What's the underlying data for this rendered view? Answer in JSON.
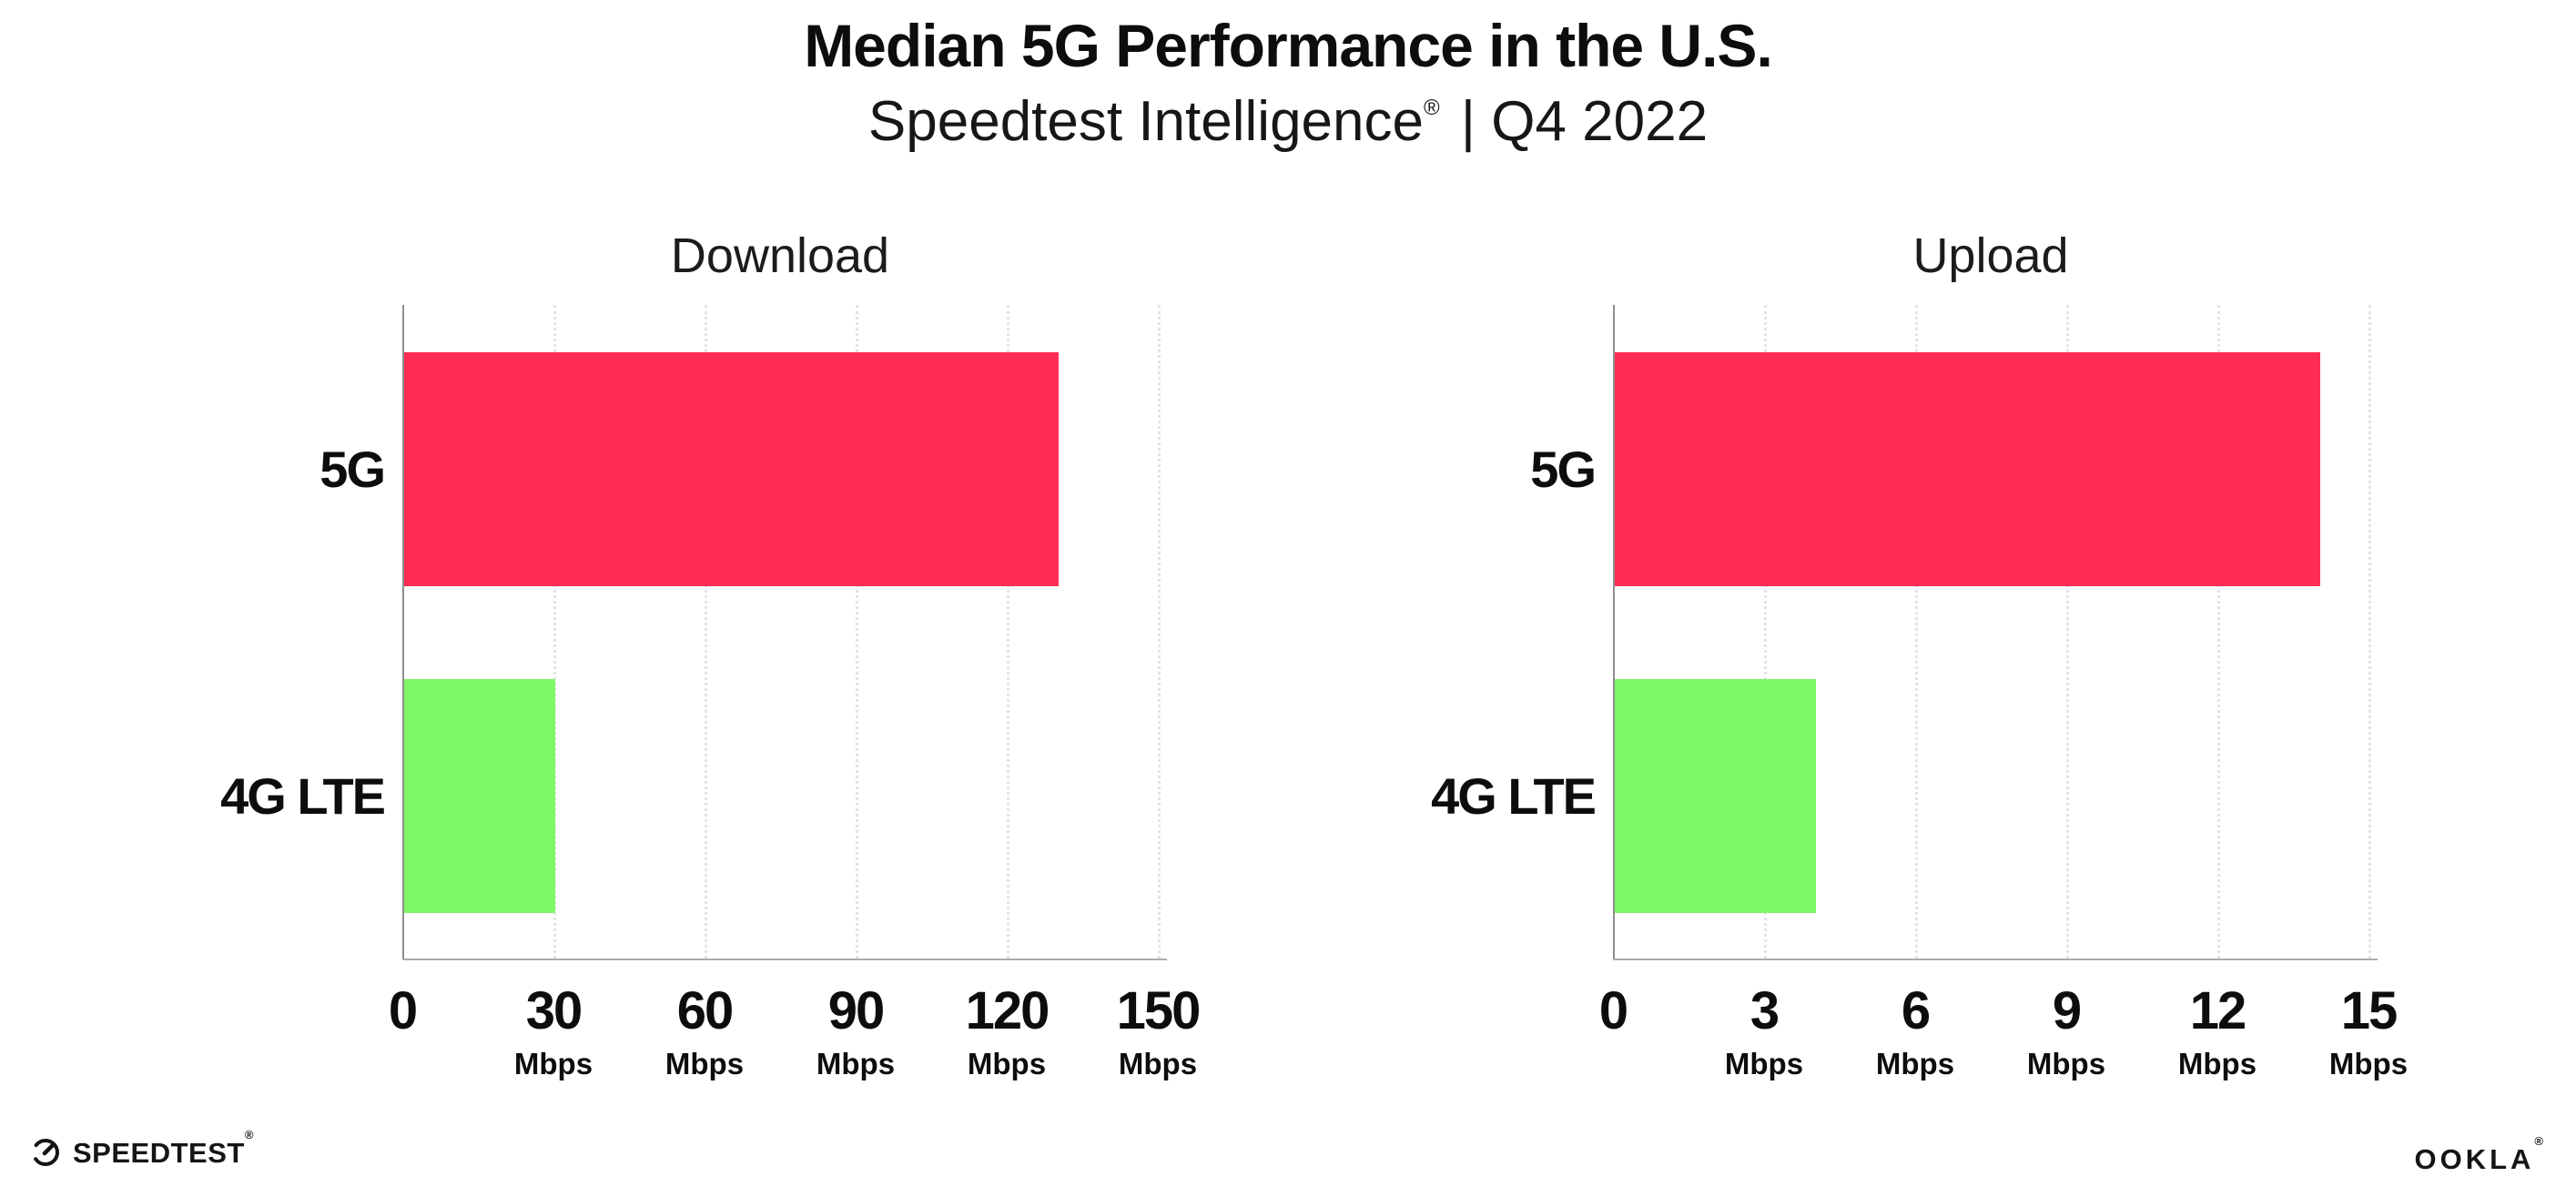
{
  "header": {
    "title": "Median 5G Performance in the U.S.",
    "subtitle_brand": "Speedtest Intelligence",
    "subtitle_reg": "®",
    "subtitle_rest": " | Q4 2022"
  },
  "chart_data": [
    {
      "type": "bar",
      "orientation": "horizontal",
      "title": "Download",
      "unit": "Mbps",
      "categories": [
        "5G",
        "4G LTE"
      ],
      "values": [
        130,
        30
      ],
      "xlim": [
        0,
        150
      ],
      "xticks": [
        0,
        30,
        60,
        90,
        120,
        150
      ],
      "bar_colors": [
        "#FF2D55",
        "#7DF765"
      ],
      "grid": "dotted vertical gridlines at each tick",
      "legend": "none"
    },
    {
      "type": "bar",
      "orientation": "horizontal",
      "title": "Upload",
      "unit": "Mbps",
      "categories": [
        "5G",
        "4G LTE"
      ],
      "values": [
        14,
        4
      ],
      "xlim": [
        0,
        15
      ],
      "xticks": [
        0,
        3,
        6,
        9,
        12,
        15
      ],
      "bar_colors": [
        "#FF2D55",
        "#7DF765"
      ],
      "grid": "dotted vertical gridlines at each tick",
      "legend": "none"
    }
  ],
  "footer": {
    "speedtest_logo": "SPEEDTEST",
    "speedtest_trademark": "®",
    "ookla_logo": "OOKLA",
    "ookla_trademark": "®"
  },
  "colors": {
    "bar_pink": "#FF2D55",
    "bar_green": "#7DF765",
    "gridline": "#E3E3EB",
    "axis": "#9A9A9A",
    "text": "#111111",
    "background": "#FFFFFF"
  }
}
